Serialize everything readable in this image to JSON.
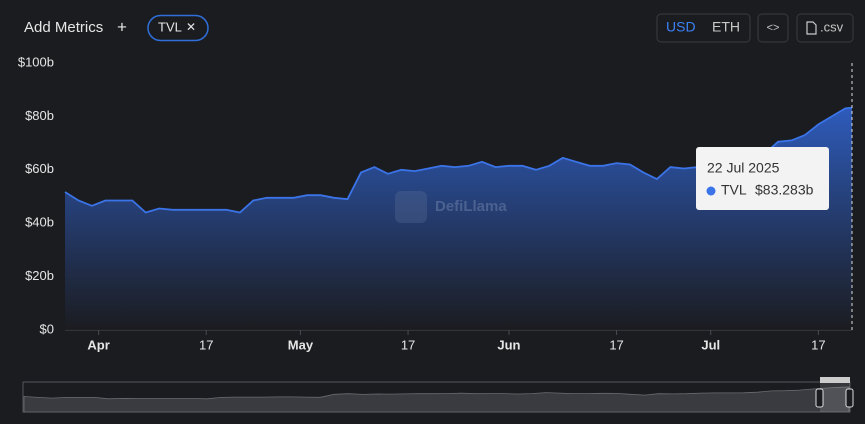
{
  "ui": {
    "add_metrics": "Add Metrics",
    "plus": "+",
    "chip_close": "✕",
    "currency": [
      "USD",
      "ETH"
    ],
    "embed": "<>",
    "csv": ".csv",
    "watermark": "DefiLlama"
  },
  "chart_data": {
    "type": "area",
    "x": [
      "2025-03-27",
      "2025-03-29",
      "2025-03-31",
      "2025-04-02",
      "2025-04-04",
      "2025-04-06",
      "2025-04-08",
      "2025-04-10",
      "2025-04-12",
      "2025-04-14",
      "2025-04-16",
      "2025-04-18",
      "2025-04-20",
      "2025-04-22",
      "2025-04-24",
      "2025-04-26",
      "2025-04-28",
      "2025-04-30",
      "2025-05-02",
      "2025-05-04",
      "2025-05-06",
      "2025-05-08",
      "2025-05-10",
      "2025-05-12",
      "2025-05-14",
      "2025-05-16",
      "2025-05-18",
      "2025-05-20",
      "2025-05-22",
      "2025-05-24",
      "2025-05-26",
      "2025-05-28",
      "2025-05-30",
      "2025-06-01",
      "2025-06-03",
      "2025-06-05",
      "2025-06-07",
      "2025-06-09",
      "2025-06-11",
      "2025-06-13",
      "2025-06-15",
      "2025-06-17",
      "2025-06-19",
      "2025-06-21",
      "2025-06-23",
      "2025-06-25",
      "2025-06-27",
      "2025-06-29",
      "2025-07-01",
      "2025-07-03",
      "2025-07-05",
      "2025-07-07",
      "2025-07-09",
      "2025-07-11",
      "2025-07-13",
      "2025-07-15",
      "2025-07-17",
      "2025-07-19",
      "2025-07-21",
      "2025-07-22"
    ],
    "series": [
      {
        "name": "TVL",
        "color": "#3b74e8",
        "values": [
          51.7,
          48.5,
          46.5,
          48.5,
          48.5,
          48.5,
          44,
          45.5,
          45,
          45,
          45,
          45,
          45,
          44,
          48.5,
          49.5,
          49.5,
          49.5,
          50.5,
          50.5,
          49.5,
          49,
          59,
          61,
          58.5,
          60,
          59.5,
          60.5,
          61.5,
          61,
          61.5,
          63,
          61,
          61.5,
          61.5,
          60,
          61.5,
          64.5,
          63,
          61.5,
          61.5,
          62.5,
          62,
          59,
          56.5,
          61,
          60.5,
          61,
          63,
          63.5,
          63.5,
          64,
          66,
          70.5,
          71,
          73,
          77,
          80,
          83,
          83.283
        ]
      }
    ],
    "xlim": [
      "2025-03-27",
      "2025-07-22"
    ],
    "xticks": [
      {
        "value": "2025-04-01",
        "label": "Apr"
      },
      {
        "value": "2025-04-17",
        "label": "17"
      },
      {
        "value": "2025-05-01",
        "label": "May"
      },
      {
        "value": "2025-05-17",
        "label": "17"
      },
      {
        "value": "2025-06-01",
        "label": "Jun"
      },
      {
        "value": "2025-06-17",
        "label": "17"
      },
      {
        "value": "2025-07-01",
        "label": "Jul"
      },
      {
        "value": "2025-07-17",
        "label": "17"
      }
    ],
    "ylim": [
      0,
      100
    ],
    "yticks": [
      {
        "value": 0,
        "label": "$0"
      },
      {
        "value": 20,
        "label": "$20b"
      },
      {
        "value": 40,
        "label": "$40b"
      },
      {
        "value": 60,
        "label": "$60b"
      },
      {
        "value": 80,
        "label": "$80b"
      },
      {
        "value": 100,
        "label": "$100b"
      }
    ],
    "tooltip": {
      "date": "22 Jul 2025",
      "value_label": "$83.283b"
    }
  }
}
